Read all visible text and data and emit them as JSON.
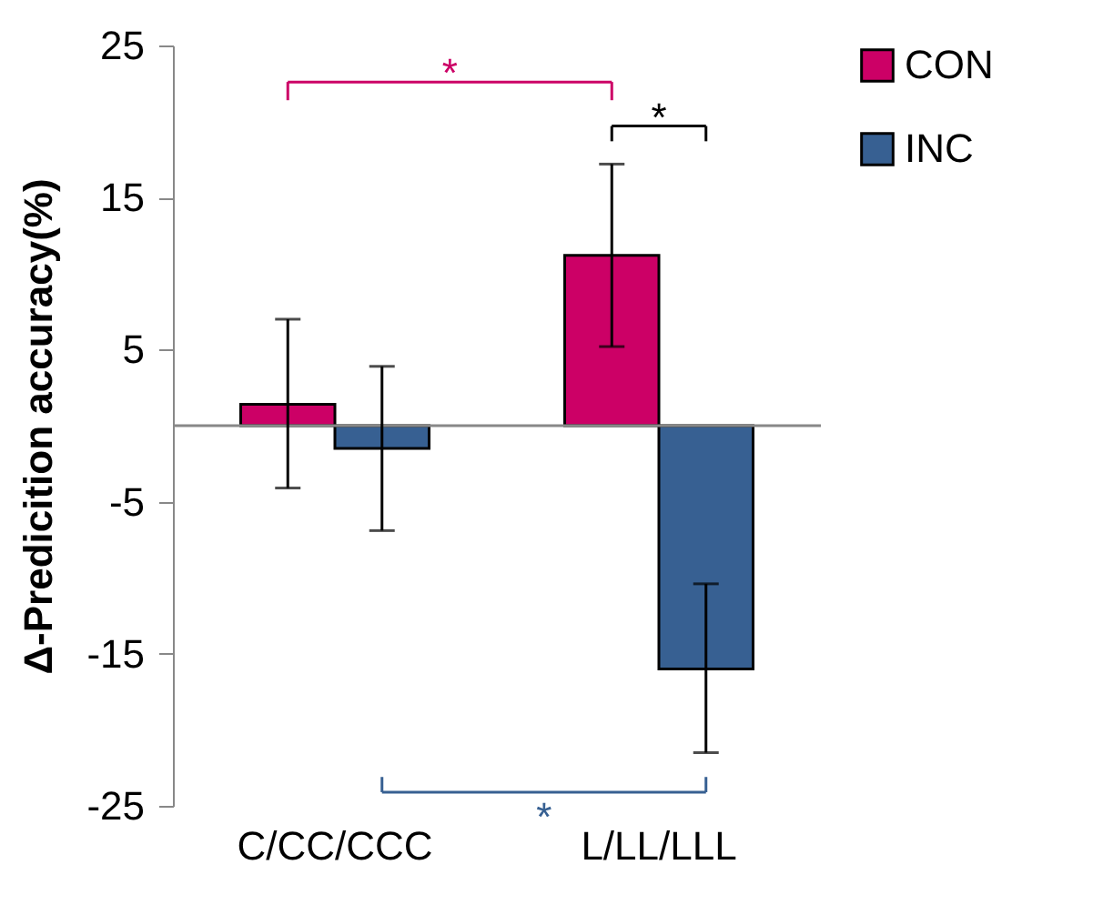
{
  "chart_data": {
    "type": "bar",
    "ylabel": "Δ-Predicition accuracy(%)",
    "categories": [
      "C/CC/CCC",
      "L/LL/LLL"
    ],
    "series": [
      {
        "name": "CON",
        "color": "#cc0066",
        "values": [
          1.4,
          11.2
        ],
        "errors": [
          [
            -4.1,
            7.0
          ],
          [
            5.2,
            17.2
          ]
        ]
      },
      {
        "name": "INC",
        "color": "#376092",
        "values": [
          -1.5,
          -16.0
        ],
        "errors": [
          [
            -6.9,
            3.9
          ],
          [
            -21.5,
            -10.4
          ]
        ]
      }
    ],
    "ylim": [
      -25,
      25
    ],
    "yticks": [
      -25,
      -15,
      -5,
      5,
      15,
      25
    ],
    "grid": false,
    "legend": "right",
    "annotations": [
      "*",
      "*",
      "*"
    ]
  }
}
